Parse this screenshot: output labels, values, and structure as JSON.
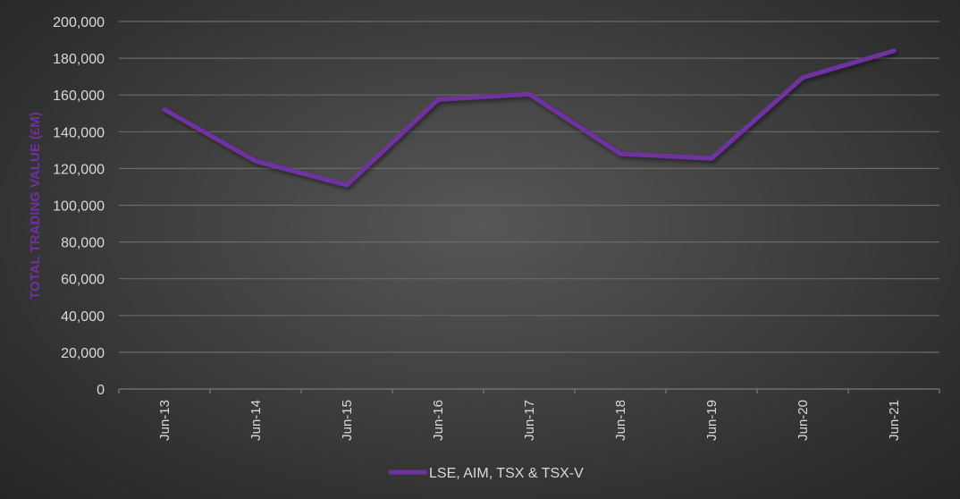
{
  "chart_data": {
    "type": "line",
    "title": "",
    "xlabel": "",
    "ylabel": "TOTAL TRADING VALUE (£M)",
    "ylim": [
      0,
      200000
    ],
    "yticks": [
      0,
      20000,
      40000,
      60000,
      80000,
      100000,
      120000,
      140000,
      160000,
      180000,
      200000
    ],
    "ytick_labels": [
      "0",
      "20,000",
      "40,000",
      "60,000",
      "80,000",
      "100,000",
      "120,000",
      "140,000",
      "160,000",
      "180,000",
      "200,000"
    ],
    "categories": [
      "Jun-13",
      "Jun-14",
      "Jun-15",
      "Jun-16",
      "Jun-17",
      "Jun-18",
      "Jun-19",
      "Jun-20",
      "Jun-21"
    ],
    "series": [
      {
        "name": "LSE, AIM, TSX & TSX-V",
        "color": "#7030a0",
        "values": [
          152000,
          124000,
          111000,
          157500,
          160500,
          128000,
          125500,
          169500,
          184000
        ]
      }
    ],
    "grid": true,
    "legend_position": "bottom"
  },
  "colors": {
    "line": "#7030a0",
    "grid": "#6a6a6a",
    "tick_text": "#d9d9d9",
    "axis_title": "#7030a0"
  }
}
